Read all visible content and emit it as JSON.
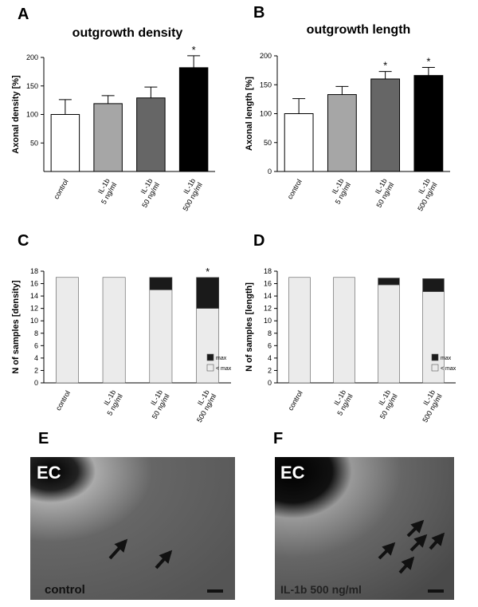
{
  "chart_data": [
    {
      "type": "bar",
      "panel": "A",
      "title": "outgrowth density",
      "ylabel": "Axonal density [%]",
      "categories": [
        "control",
        "IL-1b 5 ng/ml",
        "IL-1b 50 ng/ml",
        "IL-1b 500 ng/ml"
      ],
      "values": [
        100,
        119,
        129,
        182
      ],
      "errors": [
        26,
        14,
        19,
        21
      ],
      "colors": [
        "#ffffff",
        "#a6a6a6",
        "#666666",
        "#000000"
      ],
      "significance": [
        null,
        null,
        null,
        "*"
      ],
      "ylim": [
        0,
        200
      ],
      "yticks": [
        50,
        100,
        150,
        200
      ]
    },
    {
      "type": "bar",
      "panel": "B",
      "title": "outgrowth length",
      "ylabel": "Axonal length [%]",
      "categories": [
        "control",
        "IL-1b 5 ng/ml",
        "IL-1b 50 ng/ml",
        "IL-1b 500 ng/ml"
      ],
      "values": [
        100,
        133,
        160,
        166
      ],
      "errors": [
        26,
        14,
        13,
        14
      ],
      "colors": [
        "#ffffff",
        "#a6a6a6",
        "#666666",
        "#000000"
      ],
      "significance": [
        null,
        null,
        "*",
        "*"
      ],
      "ylim": [
        0,
        200
      ],
      "yticks": [
        0,
        50,
        100,
        150,
        200
      ]
    },
    {
      "type": "stacked_bar",
      "panel": "C",
      "ylabel": "N of samples [density]",
      "categories": [
        "control",
        "IL-1b 5 ng/ml",
        "IL-1b 50 ng/ml",
        "IL-1b 500 ng/ml"
      ],
      "series": [
        {
          "name": "< max",
          "color": "#ebebeb",
          "values": [
            17,
            17,
            15,
            12
          ]
        },
        {
          "name": "max",
          "color": "#1a1a1a",
          "values": [
            0,
            0,
            2,
            5
          ]
        }
      ],
      "significance": [
        null,
        null,
        null,
        "*"
      ],
      "legend": "lower right",
      "ylim": [
        0,
        18
      ],
      "yticks": [
        0,
        2,
        4,
        6,
        8,
        10,
        12,
        14,
        16,
        18
      ]
    },
    {
      "type": "stacked_bar",
      "panel": "D",
      "ylabel": "N of samples [length]",
      "categories": [
        "control",
        "IL-1b 5 ng/ml",
        "IL-1b 50 ng/ml",
        "IL-1b 500 ng/ml"
      ],
      "series": [
        {
          "name": "< max",
          "color": "#ebebeb",
          "values": [
            17,
            17,
            15.8,
            14.7
          ]
        },
        {
          "name": "max",
          "color": "#1a1a1a",
          "values": [
            0,
            0,
            1.1,
            2.1
          ]
        }
      ],
      "legend": "lower right",
      "ylim": [
        0,
        18
      ],
      "yticks": [
        0,
        2,
        4,
        6,
        8,
        10,
        12,
        14,
        16,
        18
      ]
    }
  ],
  "images": [
    {
      "panel": "E",
      "region": "EC",
      "caption": "control"
    },
    {
      "panel": "F",
      "region": "EC",
      "caption": "IL-1b 500 ng/ml"
    }
  ]
}
